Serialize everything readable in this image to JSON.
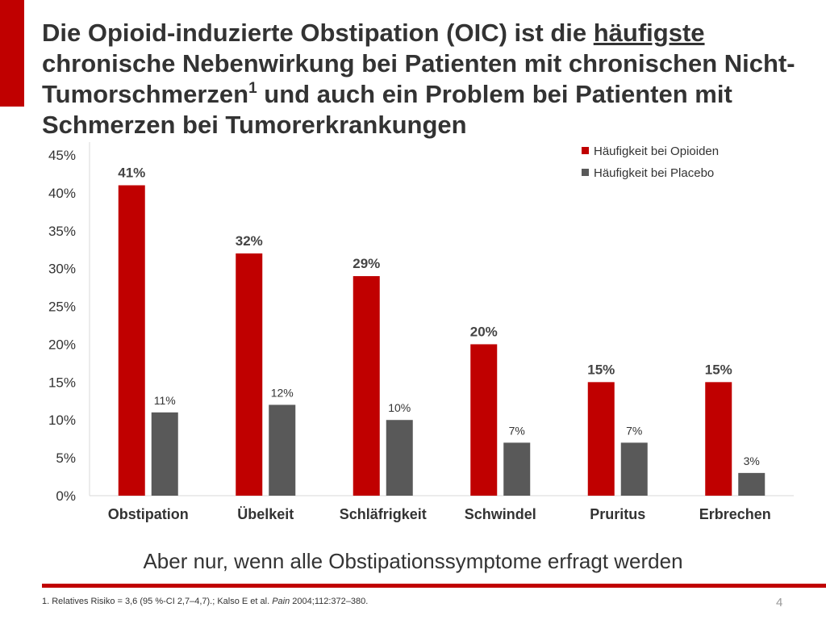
{
  "slide": {
    "title_part1": "Die Opioid-induzierte Obstipation (OIC) ist die ",
    "title_underlined": "häufigste",
    "title_part2": " chronische Nebenwirkung bei Patienten mit chronischen Nicht-Tumorschmerzen",
    "title_superscript": "1",
    "title_part3": " und auch ein Problem bei Patienten mit Schmerzen bei Tumorerkrankungen",
    "subtitle": "Aber nur, wenn alle Obstipationssymptome erfragt werden",
    "footnote_part1": "1. Relatives Risiko = 3,6 (95 %-CI 2,7–4,7).; Kalso E et al. ",
    "footnote_journal": "Pain",
    "footnote_part2": " 2004;112:372–380.",
    "page_number": "4"
  },
  "chart_data": {
    "type": "bar",
    "categories": [
      "Obstipation",
      "Übelkeit",
      "Schläfrigkeit",
      "Schwindel",
      "Pruritus",
      "Erbrechen"
    ],
    "series": [
      {
        "name": "Häufigkeit bei Opioiden",
        "values": [
          41,
          32,
          29,
          20,
          15,
          15
        ],
        "labels": [
          "41%",
          "32%",
          "29%",
          "20%",
          "15%",
          "15%"
        ],
        "color": "#c00000"
      },
      {
        "name": "Häufigkeit bei Placebo",
        "values": [
          11,
          12,
          10,
          7,
          7,
          3
        ],
        "labels": [
          "11%",
          "12%",
          "10%",
          "7%",
          "7%",
          "3%"
        ],
        "color": "#595959"
      }
    ],
    "ylim": [
      0,
      45
    ],
    "yticks": [
      0,
      5,
      10,
      15,
      20,
      25,
      30,
      35,
      40,
      45
    ],
    "ytick_labels": [
      "0%",
      "5%",
      "10%",
      "15%",
      "20%",
      "25%",
      "30%",
      "35%",
      "40%",
      "45%"
    ],
    "grid": false,
    "legend_position": "top-right"
  }
}
